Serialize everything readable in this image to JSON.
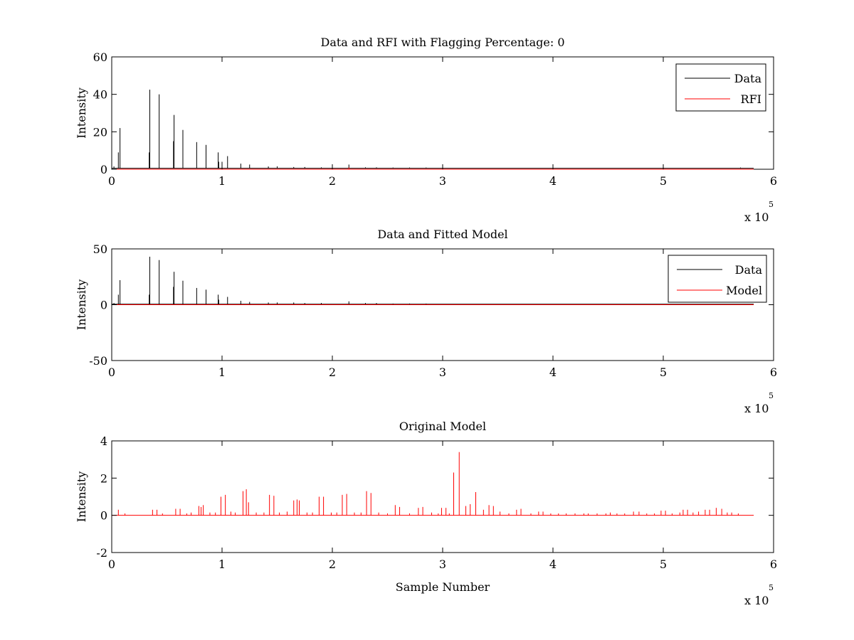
{
  "chart_data": [
    {
      "type": "line",
      "title": "Data and RFI with Flagging Percentage: 0",
      "xlabel": "",
      "ylabel": "Intensity",
      "xlim": [
        0,
        6
      ],
      "ylim": [
        0,
        60
      ],
      "x_multiplier": "x 10",
      "x_exponent": "5",
      "xticks": [
        "0",
        "1",
        "2",
        "3",
        "4",
        "5",
        "6"
      ],
      "yticks": [
        "0",
        "20",
        "40",
        "60"
      ],
      "grid": false,
      "legend_position": "top-right",
      "series": [
        {
          "name": "Data",
          "color": "#000000",
          "baseline": 0.5,
          "x_end": 5.82,
          "spikes": [
            [
              0.02,
              1.5
            ],
            [
              0.06,
              9
            ],
            [
              0.075,
              22
            ],
            [
              0.34,
              9
            ],
            [
              0.345,
              42.5
            ],
            [
              0.43,
              40
            ],
            [
              0.56,
              15
            ],
            [
              0.565,
              29
            ],
            [
              0.645,
              21
            ],
            [
              0.77,
              14.5
            ],
            [
              0.855,
              13
            ],
            [
              0.965,
              9
            ],
            [
              0.97,
              4
            ],
            [
              1.0,
              4
            ],
            [
              1.05,
              7
            ],
            [
              1.17,
              3
            ],
            [
              1.25,
              2.5
            ],
            [
              1.42,
              1.5
            ],
            [
              1.5,
              1.5
            ],
            [
              1.65,
              1.2
            ],
            [
              1.75,
              1.2
            ],
            [
              1.9,
              1
            ],
            [
              2.15,
              2.5
            ],
            [
              2.3,
              1
            ],
            [
              2.4,
              1
            ],
            [
              2.55,
              0.9
            ],
            [
              2.7,
              0.9
            ],
            [
              2.85,
              0.9
            ],
            [
              5.7,
              0.9
            ]
          ]
        },
        {
          "name": "RFI",
          "color": "#ff0000",
          "baseline": 0,
          "x_end": 5.82,
          "spikes": [
            [
              2.15,
              1
            ]
          ]
        }
      ]
    },
    {
      "type": "line",
      "title": "Data and Fitted Model",
      "xlabel": "",
      "ylabel": "Intensity",
      "xlim": [
        0,
        6
      ],
      "ylim": [
        -50,
        50
      ],
      "x_multiplier": "x 10",
      "x_exponent": "5",
      "xticks": [
        "0",
        "1",
        "2",
        "3",
        "4",
        "5",
        "6"
      ],
      "yticks": [
        "-50",
        "0",
        "50"
      ],
      "grid": false,
      "legend_position": "top-right",
      "series": [
        {
          "name": "Data",
          "color": "#000000",
          "baseline": 0.5,
          "x_end": 5.82,
          "spikes": [
            [
              0.02,
              1.5
            ],
            [
              0.06,
              9
            ],
            [
              0.075,
              22
            ],
            [
              0.34,
              9
            ],
            [
              0.345,
              43
            ],
            [
              0.43,
              40
            ],
            [
              0.56,
              16
            ],
            [
              0.565,
              29.5
            ],
            [
              0.645,
              21.5
            ],
            [
              0.77,
              15
            ],
            [
              0.855,
              13.5
            ],
            [
              0.965,
              9
            ],
            [
              0.97,
              4.5
            ],
            [
              1.05,
              7
            ],
            [
              1.17,
              3.5
            ],
            [
              1.25,
              2.5
            ],
            [
              1.42,
              2
            ],
            [
              1.5,
              2
            ],
            [
              1.65,
              2
            ],
            [
              1.75,
              1.5
            ],
            [
              1.9,
              1.5
            ],
            [
              2.15,
              3
            ],
            [
              2.3,
              1.5
            ],
            [
              2.4,
              1.5
            ],
            [
              2.55,
              1
            ],
            [
              2.7,
              1
            ],
            [
              2.85,
              1
            ]
          ]
        },
        {
          "name": "Model",
          "color": "#ff0000",
          "baseline": 0,
          "x_end": 5.82,
          "spikes": []
        }
      ]
    },
    {
      "type": "line",
      "title": "Original Model",
      "xlabel": "Sample Number",
      "ylabel": "Intensity",
      "xlim": [
        0,
        6
      ],
      "ylim": [
        -2,
        4
      ],
      "x_multiplier": "x 10",
      "x_exponent": "5",
      "xticks": [
        "0",
        "1",
        "2",
        "3",
        "4",
        "5",
        "6"
      ],
      "yticks": [
        "-2",
        "0",
        "2",
        "4"
      ],
      "grid": false,
      "legend_position": "none",
      "series": [
        {
          "name": "",
          "color": "#ff0000",
          "baseline": 0,
          "x_end": 5.82,
          "spikes": [
            [
              0.06,
              0.3
            ],
            [
              0.12,
              0.1
            ],
            [
              0.37,
              0.3
            ],
            [
              0.41,
              0.3
            ],
            [
              0.46,
              0.1
            ],
            [
              0.58,
              0.35
            ],
            [
              0.62,
              0.35
            ],
            [
              0.68,
              0.1
            ],
            [
              0.72,
              0.15
            ],
            [
              0.79,
              0.5
            ],
            [
              0.81,
              0.45
            ],
            [
              0.83,
              0.55
            ],
            [
              0.89,
              0.15
            ],
            [
              0.94,
              0.15
            ],
            [
              0.99,
              1.0
            ],
            [
              1.03,
              1.1
            ],
            [
              1.08,
              0.2
            ],
            [
              1.12,
              0.15
            ],
            [
              1.19,
              1.3
            ],
            [
              1.22,
              1.4
            ],
            [
              1.24,
              0.7
            ],
            [
              1.31,
              0.15
            ],
            [
              1.38,
              0.15
            ],
            [
              1.43,
              1.1
            ],
            [
              1.47,
              1.05
            ],
            [
              1.52,
              0.15
            ],
            [
              1.59,
              0.2
            ],
            [
              1.65,
              0.8
            ],
            [
              1.68,
              0.85
            ],
            [
              1.7,
              0.8
            ],
            [
              1.77,
              0.15
            ],
            [
              1.82,
              0.15
            ],
            [
              1.88,
              1.0
            ],
            [
              1.92,
              1.0
            ],
            [
              1.99,
              0.15
            ],
            [
              2.04,
              0.15
            ],
            [
              2.09,
              1.1
            ],
            [
              2.13,
              1.15
            ],
            [
              2.2,
              0.15
            ],
            [
              2.26,
              0.15
            ],
            [
              2.31,
              1.3
            ],
            [
              2.35,
              1.2
            ],
            [
              2.42,
              0.15
            ],
            [
              2.5,
              0.1
            ],
            [
              2.57,
              0.55
            ],
            [
              2.61,
              0.45
            ],
            [
              2.7,
              0.1
            ],
            [
              2.78,
              0.4
            ],
            [
              2.82,
              0.45
            ],
            [
              2.9,
              0.15
            ],
            [
              2.96,
              0.1
            ],
            [
              2.99,
              0.4
            ],
            [
              3.03,
              0.4
            ],
            [
              3.06,
              0.1
            ],
            [
              3.1,
              2.3
            ],
            [
              3.15,
              3.4
            ],
            [
              3.21,
              0.5
            ],
            [
              3.25,
              0.6
            ],
            [
              3.3,
              1.25
            ],
            [
              3.37,
              0.3
            ],
            [
              3.42,
              0.55
            ],
            [
              3.46,
              0.5
            ],
            [
              3.52,
              0.2
            ],
            [
              3.6,
              0.1
            ],
            [
              3.67,
              0.3
            ],
            [
              3.71,
              0.35
            ],
            [
              3.8,
              0.1
            ],
            [
              3.87,
              0.2
            ],
            [
              3.91,
              0.2
            ],
            [
              3.98,
              0.1
            ],
            [
              4.05,
              0.1
            ],
            [
              4.12,
              0.1
            ],
            [
              4.2,
              0.1
            ],
            [
              4.28,
              0.1
            ],
            [
              4.32,
              0.1
            ],
            [
              4.4,
              0.1
            ],
            [
              4.48,
              0.1
            ],
            [
              4.52,
              0.15
            ],
            [
              4.58,
              0.1
            ],
            [
              4.65,
              0.1
            ],
            [
              4.73,
              0.2
            ],
            [
              4.78,
              0.2
            ],
            [
              4.85,
              0.1
            ],
            [
              4.92,
              0.1
            ],
            [
              4.98,
              0.25
            ],
            [
              5.02,
              0.25
            ],
            [
              5.08,
              0.1
            ],
            [
              5.15,
              0.15
            ],
            [
              5.18,
              0.3
            ],
            [
              5.22,
              0.3
            ],
            [
              5.27,
              0.15
            ],
            [
              5.32,
              0.2
            ],
            [
              5.38,
              0.3
            ],
            [
              5.42,
              0.3
            ],
            [
              5.48,
              0.4
            ],
            [
              5.53,
              0.35
            ],
            [
              5.58,
              0.15
            ],
            [
              5.62,
              0.15
            ],
            [
              5.68,
              0.1
            ]
          ]
        }
      ]
    }
  ]
}
